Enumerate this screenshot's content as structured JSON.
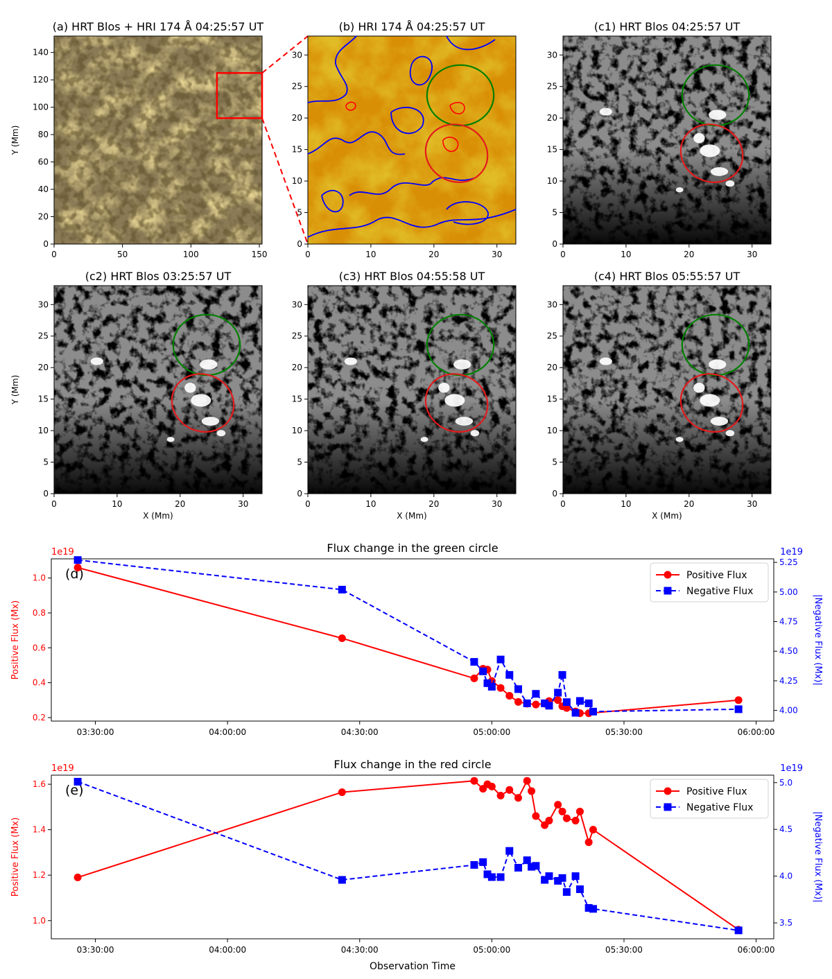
{
  "colors": {
    "positive": "#ff0000",
    "negative": "#0000ff",
    "green_circle": "#008000",
    "red_circle": "#e31a1c",
    "axis": "#000000"
  },
  "panels": [
    {
      "id": "a",
      "title": "(a) HRT Blos + HRI 174 Å 04:25:57 UT",
      "type": "composite",
      "xlim": [
        0,
        152
      ],
      "ylim": [
        0,
        152
      ],
      "xticks": [
        "0",
        "50",
        "100",
        "150"
      ],
      "yticks": [
        "0",
        "20",
        "40",
        "60",
        "80",
        "100",
        "120",
        "140"
      ],
      "ylabel": "Y (Mm)",
      "xlabel": ""
    },
    {
      "id": "b",
      "title": "(b) HRI 174 Å 04:25:57 UT",
      "type": "euv",
      "xlim": [
        0,
        33
      ],
      "ylim": [
        0,
        33
      ],
      "xticks": [
        "0",
        "10",
        "20",
        "30"
      ],
      "yticks": [
        "0",
        "5",
        "10",
        "15",
        "20",
        "25",
        "30"
      ],
      "ylabel": "",
      "xlabel": ""
    },
    {
      "id": "c1",
      "title": "(c1) HRT Blos 04:25:57 UT",
      "type": "mag",
      "xlim": [
        0,
        33
      ],
      "ylim": [
        0,
        33
      ],
      "xticks": [
        "0",
        "10",
        "20",
        "30"
      ],
      "yticks": [
        "0",
        "5",
        "10",
        "15",
        "20",
        "25",
        "30"
      ],
      "ylabel": "",
      "xlabel": ""
    },
    {
      "id": "c2",
      "title": "(c2) HRT Blos 03:25:57 UT",
      "type": "mag",
      "xlim": [
        0,
        33
      ],
      "ylim": [
        0,
        33
      ],
      "xticks": [
        "0",
        "10",
        "20",
        "30"
      ],
      "yticks": [
        "0",
        "5",
        "10",
        "15",
        "20",
        "25",
        "30"
      ],
      "ylabel": "Y (Mm)",
      "xlabel": "X (Mm)"
    },
    {
      "id": "c3",
      "title": "(c3) HRT Blos 04:55:58 UT",
      "type": "mag",
      "xlim": [
        0,
        33
      ],
      "ylim": [
        0,
        33
      ],
      "xticks": [
        "0",
        "10",
        "20",
        "30"
      ],
      "yticks": [
        "0",
        "5",
        "10",
        "15",
        "20",
        "25",
        "30"
      ],
      "ylabel": "",
      "xlabel": "X (Mm)"
    },
    {
      "id": "c4",
      "title": "(c4) HRT Blos 05:55:57 UT",
      "type": "mag",
      "xlim": [
        0,
        33
      ],
      "ylim": [
        0,
        33
      ],
      "xticks": [
        "0",
        "10",
        "20",
        "30"
      ],
      "yticks": [
        "0",
        "5",
        "10",
        "15",
        "20",
        "25",
        "30"
      ],
      "ylabel": "",
      "xlabel": "X (Mm)"
    }
  ],
  "zoom_box": {
    "x_range": [
      119,
      152
    ],
    "y_range": [
      92,
      125
    ]
  },
  "chart_data": [
    {
      "type": "line",
      "panel_label": "(d)",
      "title": "Flux change in the green circle",
      "xlabel": "",
      "ylabel": "Positive Flux (Mx)",
      "y2label": "|Negative Flux (Mx)|",
      "offset_left": "1e19",
      "offset_right": "1e19",
      "xlim_min": [
        200,
        364
      ],
      "xticks": [
        "03:30:00",
        "04:00:00",
        "04:30:00",
        "05:00:00",
        "05:30:00",
        "06:00:00"
      ],
      "xtick_min": [
        210,
        240,
        270,
        300,
        330,
        360
      ],
      "ylim": [
        0.18,
        1.11
      ],
      "yticks": [
        "0.2",
        "0.4",
        "0.6",
        "0.8",
        "1.0"
      ],
      "ytick_values": [
        0.2,
        0.4,
        0.6,
        0.8,
        1.0
      ],
      "y2lim": [
        3.91,
        5.28
      ],
      "y2ticks": [
        "4.00",
        "4.25",
        "4.50",
        "4.75",
        "5.00",
        "5.25"
      ],
      "y2tick_values": [
        4.0,
        4.25,
        4.5,
        4.75,
        5.0,
        5.25
      ],
      "legend": [
        "Positive Flux",
        "Negative Flux"
      ],
      "legend_position": "top-right",
      "series": [
        {
          "name": "Positive Flux",
          "axis": "left",
          "style": "solid-circle",
          "x": [
            206,
            266,
            296,
            298,
            299,
            300,
            302,
            304,
            306,
            308,
            310,
            312,
            313,
            315,
            316,
            317,
            319,
            320,
            322,
            356
          ],
          "y": [
            1.06,
            0.655,
            0.425,
            0.48,
            0.475,
            0.41,
            0.37,
            0.325,
            0.29,
            0.28,
            0.275,
            0.28,
            0.295,
            0.3,
            0.265,
            0.255,
            0.235,
            0.225,
            0.225,
            0.3
          ]
        },
        {
          "name": "Negative Flux",
          "axis": "right",
          "style": "dashed-square",
          "x": [
            206,
            266,
            296,
            298,
            299,
            300,
            302,
            304,
            306,
            308,
            310,
            312,
            313,
            315,
            316,
            317,
            319,
            320,
            322,
            323,
            356
          ],
          "y": [
            5.27,
            5.02,
            4.41,
            4.33,
            4.23,
            4.2,
            4.43,
            4.3,
            4.18,
            4.06,
            4.14,
            4.06,
            4.04,
            4.15,
            4.3,
            4.07,
            3.98,
            4.08,
            4.06,
            3.99,
            4.01
          ]
        }
      ]
    },
    {
      "type": "line",
      "panel_label": "(e)",
      "title": "Flux change in the red circle",
      "xlabel": "Observation Time",
      "ylabel": "Positive Flux (Mx)",
      "y2label": "|Negative Flux (Mx)|",
      "offset_left": "1e19",
      "offset_right": "1e19",
      "xlim_min": [
        200,
        364
      ],
      "xticks": [
        "03:30:00",
        "04:00:00",
        "04:30:00",
        "05:00:00",
        "05:30:00",
        "06:00:00"
      ],
      "xtick_min": [
        210,
        240,
        270,
        300,
        330,
        360
      ],
      "ylim": [
        0.92,
        1.64
      ],
      "yticks": [
        "1.0",
        "1.2",
        "1.4",
        "1.6"
      ],
      "ytick_values": [
        1.0,
        1.2,
        1.4,
        1.6
      ],
      "y2lim": [
        3.33,
        5.08
      ],
      "y2ticks": [
        "3.5",
        "4.0",
        "4.5",
        "5.0"
      ],
      "y2tick_values": [
        3.5,
        4.0,
        4.5,
        5.0
      ],
      "legend": [
        "Positive Flux",
        "Negative Flux"
      ],
      "legend_position": "top-right",
      "series": [
        {
          "name": "Positive Flux",
          "axis": "left",
          "style": "solid-circle",
          "x": [
            206,
            266,
            296,
            298,
            299,
            300,
            302,
            304,
            306,
            308,
            309,
            310,
            312,
            313,
            315,
            316,
            317,
            319,
            320,
            322,
            323,
            356
          ],
          "y": [
            1.19,
            1.565,
            1.615,
            1.58,
            1.6,
            1.59,
            1.55,
            1.575,
            1.54,
            1.615,
            1.57,
            1.46,
            1.42,
            1.44,
            1.51,
            1.48,
            1.45,
            1.44,
            1.48,
            1.345,
            1.4,
            0.96
          ]
        },
        {
          "name": "Negative Flux",
          "axis": "right",
          "style": "dashed-square",
          "x": [
            206,
            266,
            296,
            298,
            299,
            300,
            302,
            304,
            306,
            308,
            309,
            310,
            312,
            313,
            315,
            316,
            317,
            319,
            320,
            322,
            323,
            356
          ],
          "y": [
            5.01,
            3.96,
            4.12,
            4.15,
            4.02,
            3.99,
            3.99,
            4.27,
            4.09,
            4.17,
            4.1,
            4.11,
            3.96,
            4.0,
            3.95,
            3.98,
            3.83,
            4.0,
            3.86,
            3.66,
            3.65,
            3.42
          ]
        }
      ]
    }
  ]
}
